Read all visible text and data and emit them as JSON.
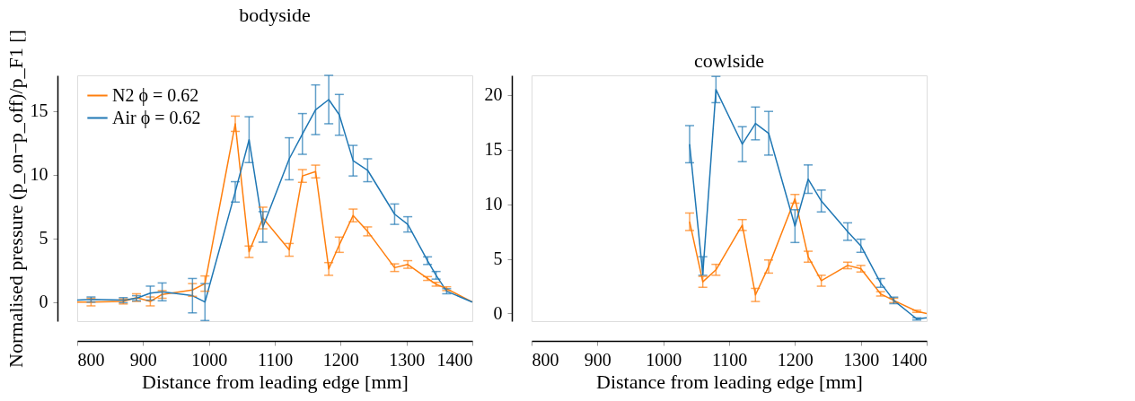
{
  "chart_data": [
    {
      "type": "line",
      "title": "bodyside",
      "xlabel": "Distance from leading edge [mm]",
      "ylabel": "Normalised pressure (p_on−p_off)/p_F1 []",
      "xlim": [
        800,
        1400
      ],
      "xticks": [
        800,
        900,
        1000,
        1100,
        1200,
        1300,
        1400
      ],
      "ylim": [
        -1.5,
        17.8
      ],
      "yticks": [
        0,
        5,
        10,
        15
      ],
      "legend": "top left",
      "grid": false,
      "marker": "none",
      "line_style": "solid",
      "x": [
        800,
        821,
        870,
        890,
        911,
        929,
        975,
        994,
        1040,
        1061,
        1082,
        1122,
        1142,
        1162,
        1182,
        1198,
        1219,
        1241,
        1282,
        1302,
        1332,
        1345,
        1361,
        1400
      ],
      "series": [
        {
          "name": "N2 ϕ = 0.62",
          "color": "#ff7f0e",
          "values": [
            0,
            0,
            0.05,
            0.35,
            0.05,
            0.6,
            0.95,
            1.45,
            14.0,
            3.95,
            6.6,
            4.1,
            9.9,
            10.25,
            2.6,
            4.5,
            6.8,
            5.55,
            2.7,
            2.95,
            1.85,
            1.4,
            1.05,
            0
          ],
          "errors": [
            null,
            0.3,
            0.2,
            0.3,
            0.35,
            0.3,
            0.5,
            0.6,
            0.6,
            0.45,
            0.85,
            0.5,
            0.5,
            0.5,
            0.5,
            0.6,
            0.5,
            0.35,
            0.3,
            0.3,
            0.15,
            0.15,
            0.15,
            null
          ]
        },
        {
          "name": "Air ϕ = 0.62",
          "color": "#1f77b4",
          "values": [
            0.15,
            0.2,
            0.15,
            0.3,
            0.7,
            0.8,
            0.5,
            0.0,
            8.65,
            12.75,
            5.9,
            11.25,
            13.2,
            15.1,
            15.9,
            14.7,
            11.1,
            10.35,
            6.9,
            6.1,
            3.25,
            2.1,
            0.85,
            0
          ],
          "errors": [
            null,
            0.2,
            0.2,
            0.2,
            0.55,
            0.7,
            1.35,
            1.45,
            0.8,
            1.8,
            1.2,
            1.65,
            1.6,
            1.95,
            1.9,
            1.6,
            1.2,
            0.9,
            0.8,
            0.6,
            0.3,
            0.3,
            0.2,
            null
          ]
        }
      ]
    },
    {
      "type": "line",
      "title": "cowlside",
      "xlabel": "Distance from leading edge [mm]",
      "xlim": [
        800,
        1400
      ],
      "xticks": [
        800,
        900,
        1000,
        1100,
        1200,
        1300,
        1400
      ],
      "ylim": [
        -0.7,
        21.8
      ],
      "yticks": [
        0,
        5,
        10,
        15,
        20
      ],
      "grid": false,
      "marker": "none",
      "line_style": "solid",
      "x": [
        1040,
        1060,
        1080,
        1120,
        1140,
        1160,
        1200,
        1220,
        1240,
        1280,
        1300,
        1330,
        1350,
        1385,
        1400
      ],
      "series": [
        {
          "color": "#ff7f0e",
          "values": [
            8.4,
            2.9,
            4.0,
            8.1,
            1.7,
            4.3,
            10.5,
            5.2,
            3.0,
            4.4,
            4.1,
            1.8,
            1.2,
            0.2,
            0
          ],
          "errors": [
            0.8,
            0.5,
            0.5,
            0.5,
            0.6,
            0.6,
            0.4,
            0.5,
            0.5,
            0.3,
            0.3,
            0.2,
            0.2,
            0.1,
            null
          ]
        },
        {
          "color": "#1f77b4",
          "values": [
            15.5,
            3.6,
            20.5,
            15.5,
            17.4,
            16.5,
            8.0,
            12.3,
            10.3,
            7.5,
            6.2,
            2.8,
            1.2,
            -0.5,
            -0.4
          ],
          "errors": [
            1.7,
            [
              3.5,
              5.2
            ],
            1.2,
            1.6,
            1.5,
            2,
            1.5,
            1.3,
            1.0,
            0.8,
            0.6,
            0.4,
            0.3,
            0.1,
            null
          ]
        }
      ]
    }
  ]
}
